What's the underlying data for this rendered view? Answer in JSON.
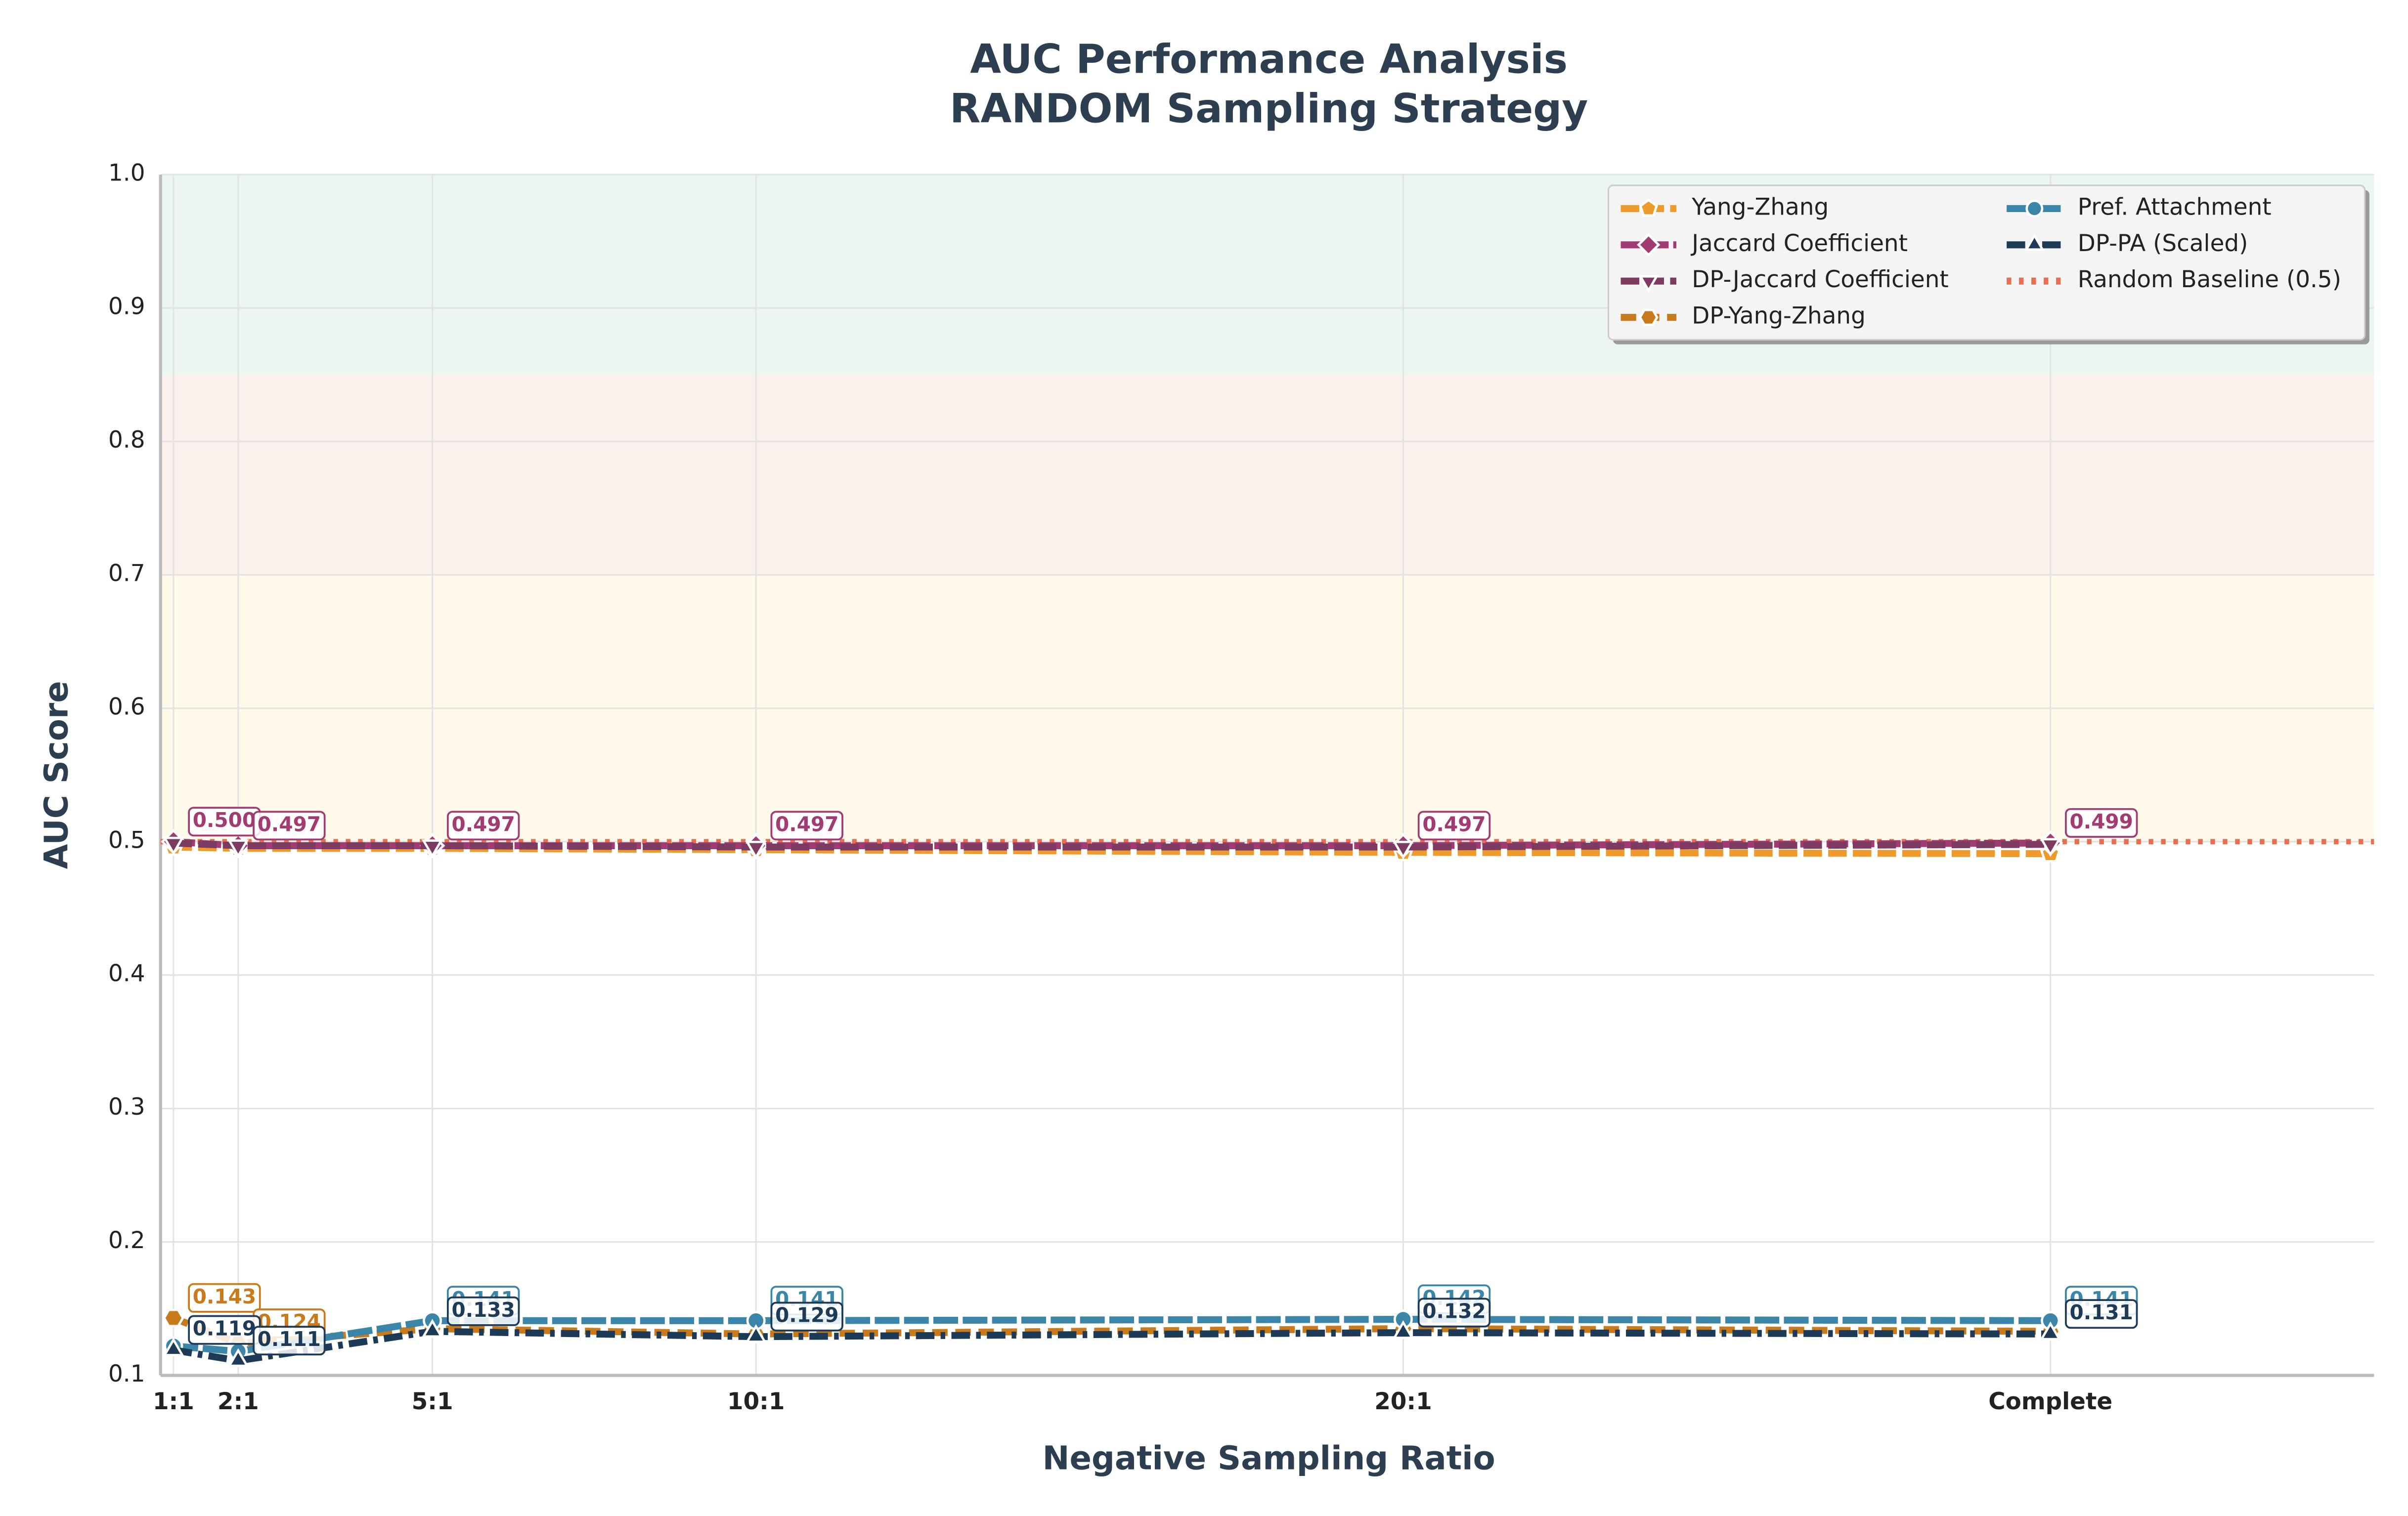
{
  "chart_data": {
    "type": "line",
    "title": "AUC Performance Analysis",
    "subtitle": "RANDOM Sampling Strategy",
    "x_label": "Negative Sampling Ratio",
    "y_label": "AUC Score",
    "x": [
      1,
      2,
      5,
      10,
      20,
      30
    ],
    "xlim": [
      0.8,
      35
    ],
    "xticks": [
      {
        "value": 1,
        "label": "1:1"
      },
      {
        "value": 2,
        "label": "2:1"
      },
      {
        "value": 5,
        "label": "5:1"
      },
      {
        "value": 10,
        "label": "10:1"
      },
      {
        "value": 20,
        "label": "20:1"
      },
      {
        "value": 30,
        "label": "Complete"
      }
    ],
    "ylim": [
      0.1,
      1.0
    ],
    "yticks": [
      {
        "value": 0.1,
        "label": "0.1"
      },
      {
        "value": 0.2,
        "label": "0.2"
      },
      {
        "value": 0.3,
        "label": "0.3"
      },
      {
        "value": 0.4,
        "label": "0.4"
      },
      {
        "value": 0.5,
        "label": "0.5"
      },
      {
        "value": 0.6,
        "label": "0.6"
      },
      {
        "value": 0.7,
        "label": "0.7"
      },
      {
        "value": 0.8,
        "label": "0.8"
      },
      {
        "value": 0.9,
        "label": "0.9"
      },
      {
        "value": 1.0,
        "label": "1.0"
      }
    ],
    "grid": true,
    "legend": "upper right",
    "bands": [
      {
        "from": 0.85,
        "to": 1.0,
        "color": "#e3f2ea"
      },
      {
        "from": 0.7,
        "to": 0.85,
        "color": "#fbe9e4"
      },
      {
        "from": 0.5,
        "to": 0.7,
        "color": "#fdf6e0"
      }
    ],
    "series": [
      {
        "name": "Yang-Zhang",
        "color": "#ee9a2c",
        "dash": "12,4",
        "marker": "pentagon",
        "values": [
          0.496,
          0.495,
          0.495,
          0.494,
          0.492,
          0.491
        ]
      },
      {
        "name": "Jaccard Coefficient",
        "color": "#a23b72",
        "dash": "14,3",
        "marker": "diamond",
        "values": [
          0.5,
          0.497,
          0.497,
          0.497,
          0.497,
          0.499
        ],
        "value_labels": [
          "0.500",
          "0.497",
          "0.497",
          "0.497",
          "0.497",
          "0.499"
        ]
      },
      {
        "name": "DP-Jaccard Coefficient",
        "color": "#7d3b62",
        "dash": "12,4",
        "marker": "tri-down",
        "values": [
          0.499,
          0.497,
          0.497,
          0.496,
          0.496,
          0.498
        ]
      },
      {
        "name": "DP-Yang-Zhang",
        "color": "#c97a1a",
        "dash": "10,5",
        "marker": "hexagon",
        "values": [
          0.143,
          0.124,
          0.135,
          0.131,
          0.135,
          0.133
        ],
        "value_labels": [
          "0.143",
          "0.124",
          null,
          null,
          null,
          null
        ]
      },
      {
        "name": "Pref. Attachment",
        "color": "#3a85a8",
        "dash": "16,3",
        "marker": "circle",
        "values": [
          0.122,
          0.118,
          0.141,
          0.141,
          0.142,
          0.141
        ],
        "value_labels": [
          null,
          null,
          "0.141",
          "0.141",
          "0.142",
          "0.141"
        ]
      },
      {
        "name": "DP-PA (Scaled)",
        "color": "#1d3a57",
        "dash": "12,4,3,4",
        "marker": "tri-up",
        "values": [
          0.119,
          0.111,
          0.133,
          0.129,
          0.132,
          0.131
        ],
        "value_labels": [
          "0.119",
          "0.111",
          "0.133",
          "0.129",
          "0.132",
          "0.131"
        ]
      }
    ],
    "baseline": {
      "name": "Random Baseline (0.5)",
      "value": 0.5,
      "color": "#e76f51"
    }
  }
}
